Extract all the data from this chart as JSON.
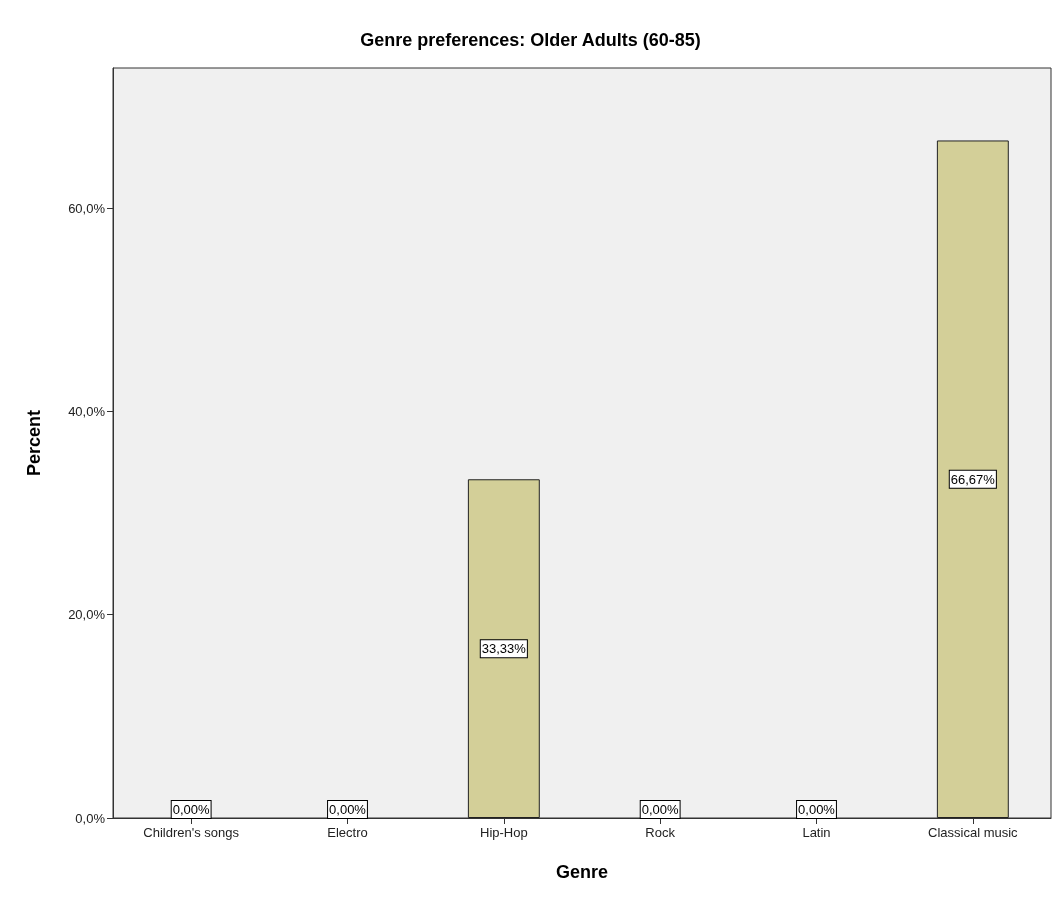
{
  "chart_data": {
    "type": "bar",
    "title": "Genre preferences: Older Adults (60-85)",
    "xlabel": "Genre",
    "ylabel": "Percent",
    "categories": [
      "Children's songs",
      "Electro",
      "Hip-Hop",
      "Rock",
      "Latin",
      "Classical music"
    ],
    "values": [
      0,
      0,
      33.33,
      0,
      0,
      66.67
    ],
    "value_labels": [
      "0,00%",
      "0,00%",
      "33,33%",
      "0,00%",
      "0,00%",
      "66,67%"
    ],
    "color": "#d3cf98",
    "ylim": [
      0,
      73.8
    ],
    "yticks": [
      {
        "value": 0,
        "label": "0,0%"
      },
      {
        "value": 20,
        "label": "20,0%"
      },
      {
        "value": 40,
        "label": "40,0%"
      },
      {
        "value": 60,
        "label": "60,0%"
      }
    ],
    "grid": false
  }
}
